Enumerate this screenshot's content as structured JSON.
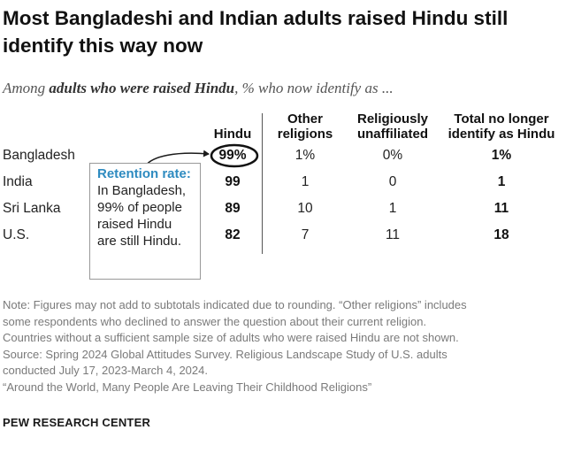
{
  "title": "Most Bangladeshi and Indian adults raised Hindu still identify this way now",
  "subtitle": {
    "prefix": "Among ",
    "emphasis": "adults who were raised Hindu",
    "suffix": ", % who now identify as ..."
  },
  "chart_data": {
    "type": "table",
    "columns": [
      "Hindu",
      "Other religions",
      "Religiously unaffiliated",
      "Total no longer identify as Hindu"
    ],
    "rows": [
      {
        "country": "Bangladesh",
        "values": [
          "99%",
          "1%",
          "0%",
          "1%"
        ]
      },
      {
        "country": "India",
        "values": [
          "99",
          "1",
          "0",
          "1"
        ]
      },
      {
        "country": "Sri Lanka",
        "values": [
          "89",
          "10",
          "1",
          "11"
        ]
      },
      {
        "country": "U.S.",
        "values": [
          "82",
          "7",
          "11",
          "18"
        ]
      }
    ]
  },
  "headers": {
    "hindu": "Hindu",
    "other_1": "Other",
    "other_2": "religions",
    "unaff_1": "Religiously",
    "unaff_2": "unaffiliated",
    "total_1": "Total no longer",
    "total_2": "identify as Hindu"
  },
  "callout": {
    "lead": "Retention rate:",
    "text": " In Bangladesh, 99% of people raised Hindu are still Hindu."
  },
  "note_lines": [
    "Note: Figures may not add to subtotals indicated due to rounding. “Other religions” includes",
    "some respondents who declined to answer the question about their current religion.",
    "Countries without a sufficient sample size of adults who were raised Hindu are not shown.",
    "Source: Spring 2024 Global Attitudes Survey. Religious Landscape Study of U.S. adults",
    "conducted July 17, 2023-March 4, 2024.",
    "“Around the World, Many People Are Leaving Their Childhood Religions”"
  ],
  "brand": "PEW RESEARCH CENTER",
  "colors": {
    "accent": "#2e8bc0",
    "note": "#7a7a7a",
    "text": "#1a1a1a"
  }
}
